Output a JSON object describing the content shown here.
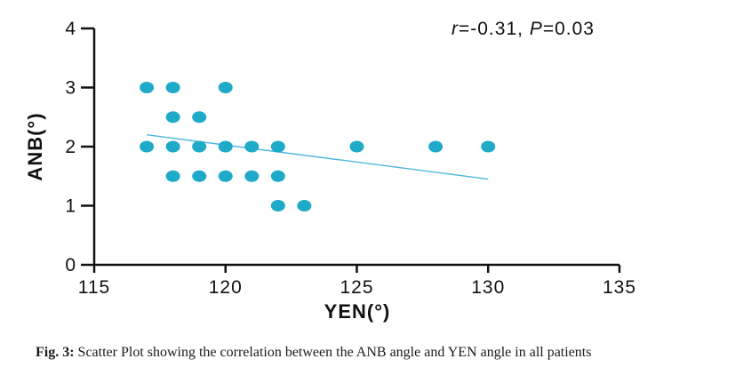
{
  "chart_data": {
    "type": "scatter",
    "xlabel": "YEN(°)",
    "ylabel": "ANB(°)",
    "xlim": [
      115,
      135
    ],
    "ylim": [
      0,
      4
    ],
    "x_ticks": [
      "115",
      "120",
      "125",
      "130",
      "135"
    ],
    "y_ticks": [
      "0",
      "1",
      "2",
      "3",
      "4"
    ],
    "points": [
      {
        "x": 117,
        "y": 3
      },
      {
        "x": 118,
        "y": 3
      },
      {
        "x": 120,
        "y": 3
      },
      {
        "x": 118,
        "y": 2.5
      },
      {
        "x": 119,
        "y": 2.5
      },
      {
        "x": 117,
        "y": 2
      },
      {
        "x": 118,
        "y": 2
      },
      {
        "x": 119,
        "y": 2
      },
      {
        "x": 120,
        "y": 2
      },
      {
        "x": 121,
        "y": 2
      },
      {
        "x": 122,
        "y": 2
      },
      {
        "x": 125,
        "y": 2
      },
      {
        "x": 128,
        "y": 2
      },
      {
        "x": 130,
        "y": 2
      },
      {
        "x": 118,
        "y": 1.5
      },
      {
        "x": 119,
        "y": 1.5
      },
      {
        "x": 120,
        "y": 1.5
      },
      {
        "x": 121,
        "y": 1.5
      },
      {
        "x": 122,
        "y": 1.5
      },
      {
        "x": 122,
        "y": 1
      },
      {
        "x": 123,
        "y": 1
      }
    ],
    "trend_line": {
      "x": [
        117,
        130
      ],
      "y": [
        2.2,
        1.45
      ]
    },
    "annotation": {
      "r_symbol": "r",
      "r_value": "=-0.31, ",
      "p_symbol": "P",
      "p_value": "=0.03"
    },
    "grid": false,
    "point_color": "#1faac9",
    "line_color": "#4fb6dc"
  },
  "caption": {
    "label": "Fig. 3:",
    "text": " Scatter Plot showing the correlation between the ANB angle and YEN angle in all patients"
  }
}
